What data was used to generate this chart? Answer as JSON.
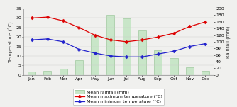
{
  "months": [
    "Jan",
    "Feb",
    "Mar",
    "Apr",
    "May",
    "Jun",
    "Jul",
    "Aug",
    "Sep",
    "Oct",
    "Nov",
    "Dec"
  ],
  "rainfall_mm": [
    9,
    13,
    19,
    44,
    120,
    180,
    170,
    135,
    75,
    50,
    22,
    13
  ],
  "temp_max": [
    30,
    30.5,
    28.5,
    25,
    21,
    18.5,
    17.5,
    18.5,
    20,
    22,
    25.5,
    28
  ],
  "temp_min": [
    18.5,
    19,
    17.5,
    13.5,
    11.5,
    10,
    9.5,
    9.5,
    11,
    12.5,
    15,
    16.5
  ],
  "bar_color": "#c8e6c8",
  "bar_edge_color": "#90c090",
  "line_max_color": "#dd0000",
  "line_min_color": "#2222cc",
  "marker": "D",
  "marker_size": 2.5,
  "ylabel_left": "Temperature (°C)",
  "ylabel_right": "Rainfall (mm)",
  "ylim_left": [
    0,
    35
  ],
  "ylim_right": [
    0,
    200
  ],
  "yticks_left": [
    0,
    5,
    10,
    15,
    20,
    25,
    30,
    35
  ],
  "yticks_right": [
    0,
    20,
    40,
    60,
    80,
    100,
    120,
    140,
    160,
    180,
    200
  ],
  "background_color": "#f0f0ee",
  "legend_labels": [
    "Mean rainfall (mm)",
    "Mean maximum temperature (°C)",
    "Mean minimum temperature (°C)"
  ],
  "font_size": 4.8,
  "tick_font_size": 4.5,
  "line_width": 0.9
}
